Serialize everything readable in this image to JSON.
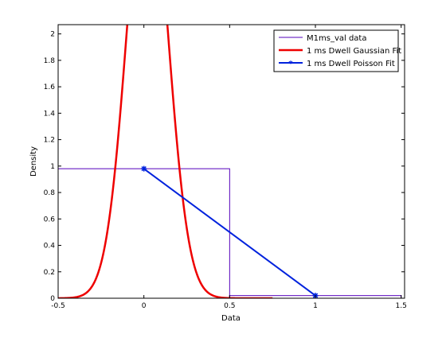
{
  "chart_data": {
    "type": "line",
    "title": "",
    "xlabel": "Data",
    "ylabel": "Density",
    "xlim": [
      -0.5,
      1.52
    ],
    "ylim": [
      0,
      2.07
    ],
    "xticks": [
      -0.5,
      0,
      0.5,
      1,
      1.5
    ],
    "xtick_labels": [
      "-0.5",
      "0",
      "0.5",
      "1",
      "1.5"
    ],
    "yticks": [
      0,
      0.2,
      0.4,
      0.6,
      0.8,
      1,
      1.2,
      1.4,
      1.6,
      1.8,
      2
    ],
    "ytick_labels": [
      "0",
      "0.2",
      "0.4",
      "0.6",
      "0.8",
      "1",
      "1.2",
      "1.4",
      "1.6",
      "1.8",
      "2"
    ],
    "grid": false,
    "legend_position": "top-right",
    "series": [
      {
        "name": "M1ms_val data",
        "kind": "histogram",
        "color": "#5500bb",
        "bins": [
          {
            "x0": -0.5,
            "x1": 0.5,
            "y": 0.98
          },
          {
            "x0": 0.5,
            "x1": 1.5,
            "y": 0.02
          }
        ]
      },
      {
        "name": "1 ms Dwell Gaussian Fit",
        "kind": "gaussian",
        "color": "#ee0000",
        "mean": 0.02,
        "sd": 0.12,
        "x_range": [
          -0.5,
          0.75
        ]
      },
      {
        "name": "1 ms Dwell Poisson Fit",
        "kind": "line-marker",
        "color": "#0022dd",
        "x": [
          0,
          1
        ],
        "y": [
          0.98,
          0.02
        ]
      }
    ]
  }
}
